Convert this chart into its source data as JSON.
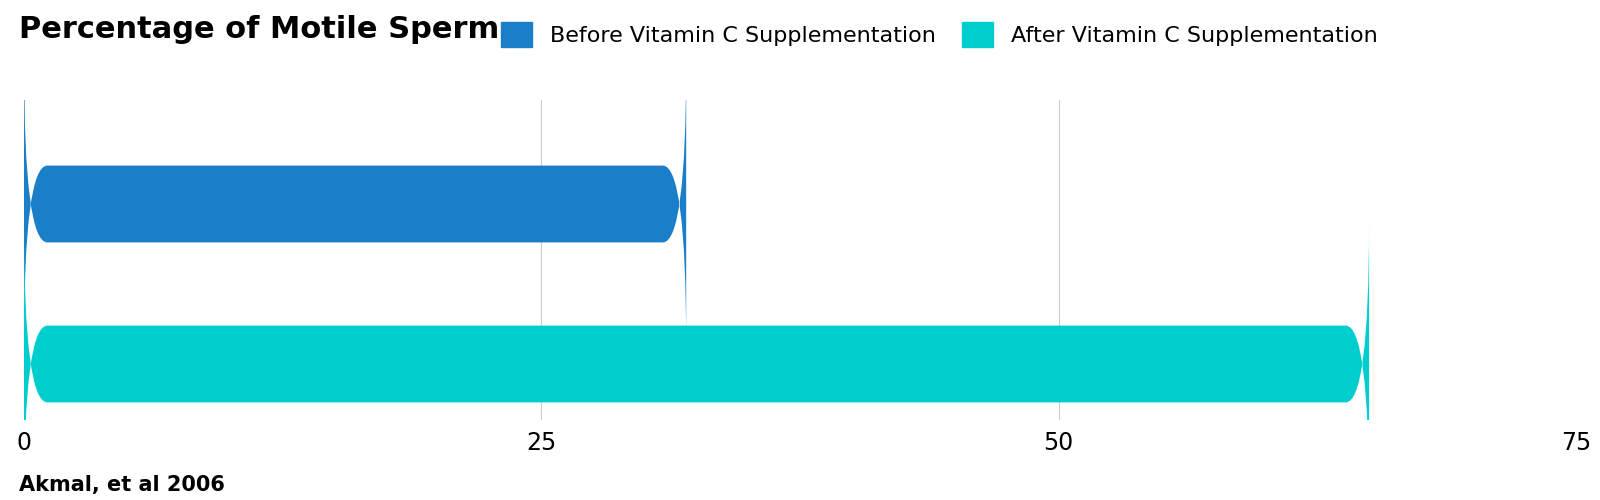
{
  "title": "Percentage of Motile Sperm",
  "categories": [
    "Before Vitamin C Supplementation",
    "After Vitamin C Supplementation"
  ],
  "values": [
    32,
    65
  ],
  "colors": [
    "#1a7ec8",
    "#00cece"
  ],
  "xlim": [
    0,
    75
  ],
  "xticks": [
    0,
    25,
    50,
    75
  ],
  "grid_values": [
    25,
    50
  ],
  "source_text": "Akmal, et al 2006",
  "legend_labels": [
    "Before Vitamin C Supplementation",
    "After Vitamin C Supplementation"
  ],
  "legend_colors": [
    "#1a7ec8",
    "#00cece"
  ],
  "background_color": "#ffffff",
  "title_fontsize": 22,
  "tick_fontsize": 17,
  "source_fontsize": 15,
  "legend_fontsize": 16
}
